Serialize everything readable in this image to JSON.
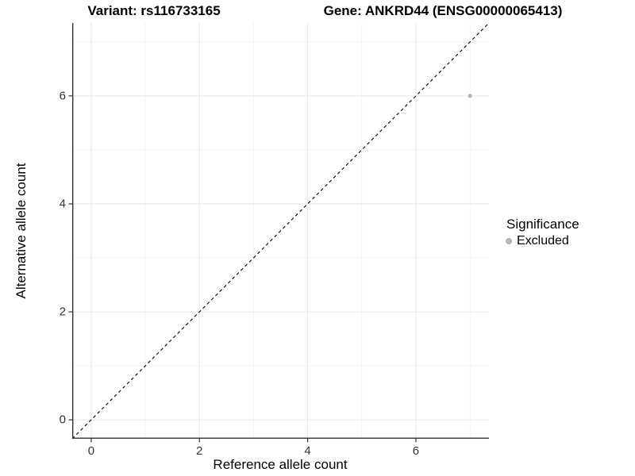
{
  "chart_data": {
    "type": "scatter",
    "title_left": "Variant: rs116733165",
    "title_right": "Gene: ANKRD44 (ENSG00000065413)",
    "xlabel": "Reference allele count",
    "ylabel": "Alternative allele count",
    "xlim": [
      -0.35,
      7.35
    ],
    "ylim": [
      -0.35,
      7.35
    ],
    "x_major_ticks": [
      0,
      2,
      4,
      6
    ],
    "x_minor_ticks": [
      1,
      3,
      5,
      7
    ],
    "y_major_ticks": [
      0,
      2,
      4,
      6
    ],
    "y_minor_ticks": [
      1,
      3,
      5,
      7
    ],
    "grid": "major+minor",
    "reference_line": {
      "type": "identity y=x",
      "style": "dashed",
      "color": "#000000"
    },
    "series": [
      {
        "name": "Excluded",
        "marker": "circle",
        "color": "#b5b5b5",
        "points": [
          {
            "x": 7,
            "y": 6
          }
        ]
      }
    ],
    "legend": {
      "title": "Significance",
      "position": "right",
      "entries": [
        {
          "label": "Excluded",
          "color": "#b5b5b5",
          "marker": "circle"
        }
      ]
    }
  },
  "colors": {
    "background": "#ffffff",
    "axis_line": "#333333",
    "tick_mark": "#333333",
    "tick_label": "#333333",
    "grid_major": "#e6e6e6",
    "grid_minor": "#f1f1f1",
    "reference_line": "#000000",
    "point": "#b5b5b5"
  }
}
